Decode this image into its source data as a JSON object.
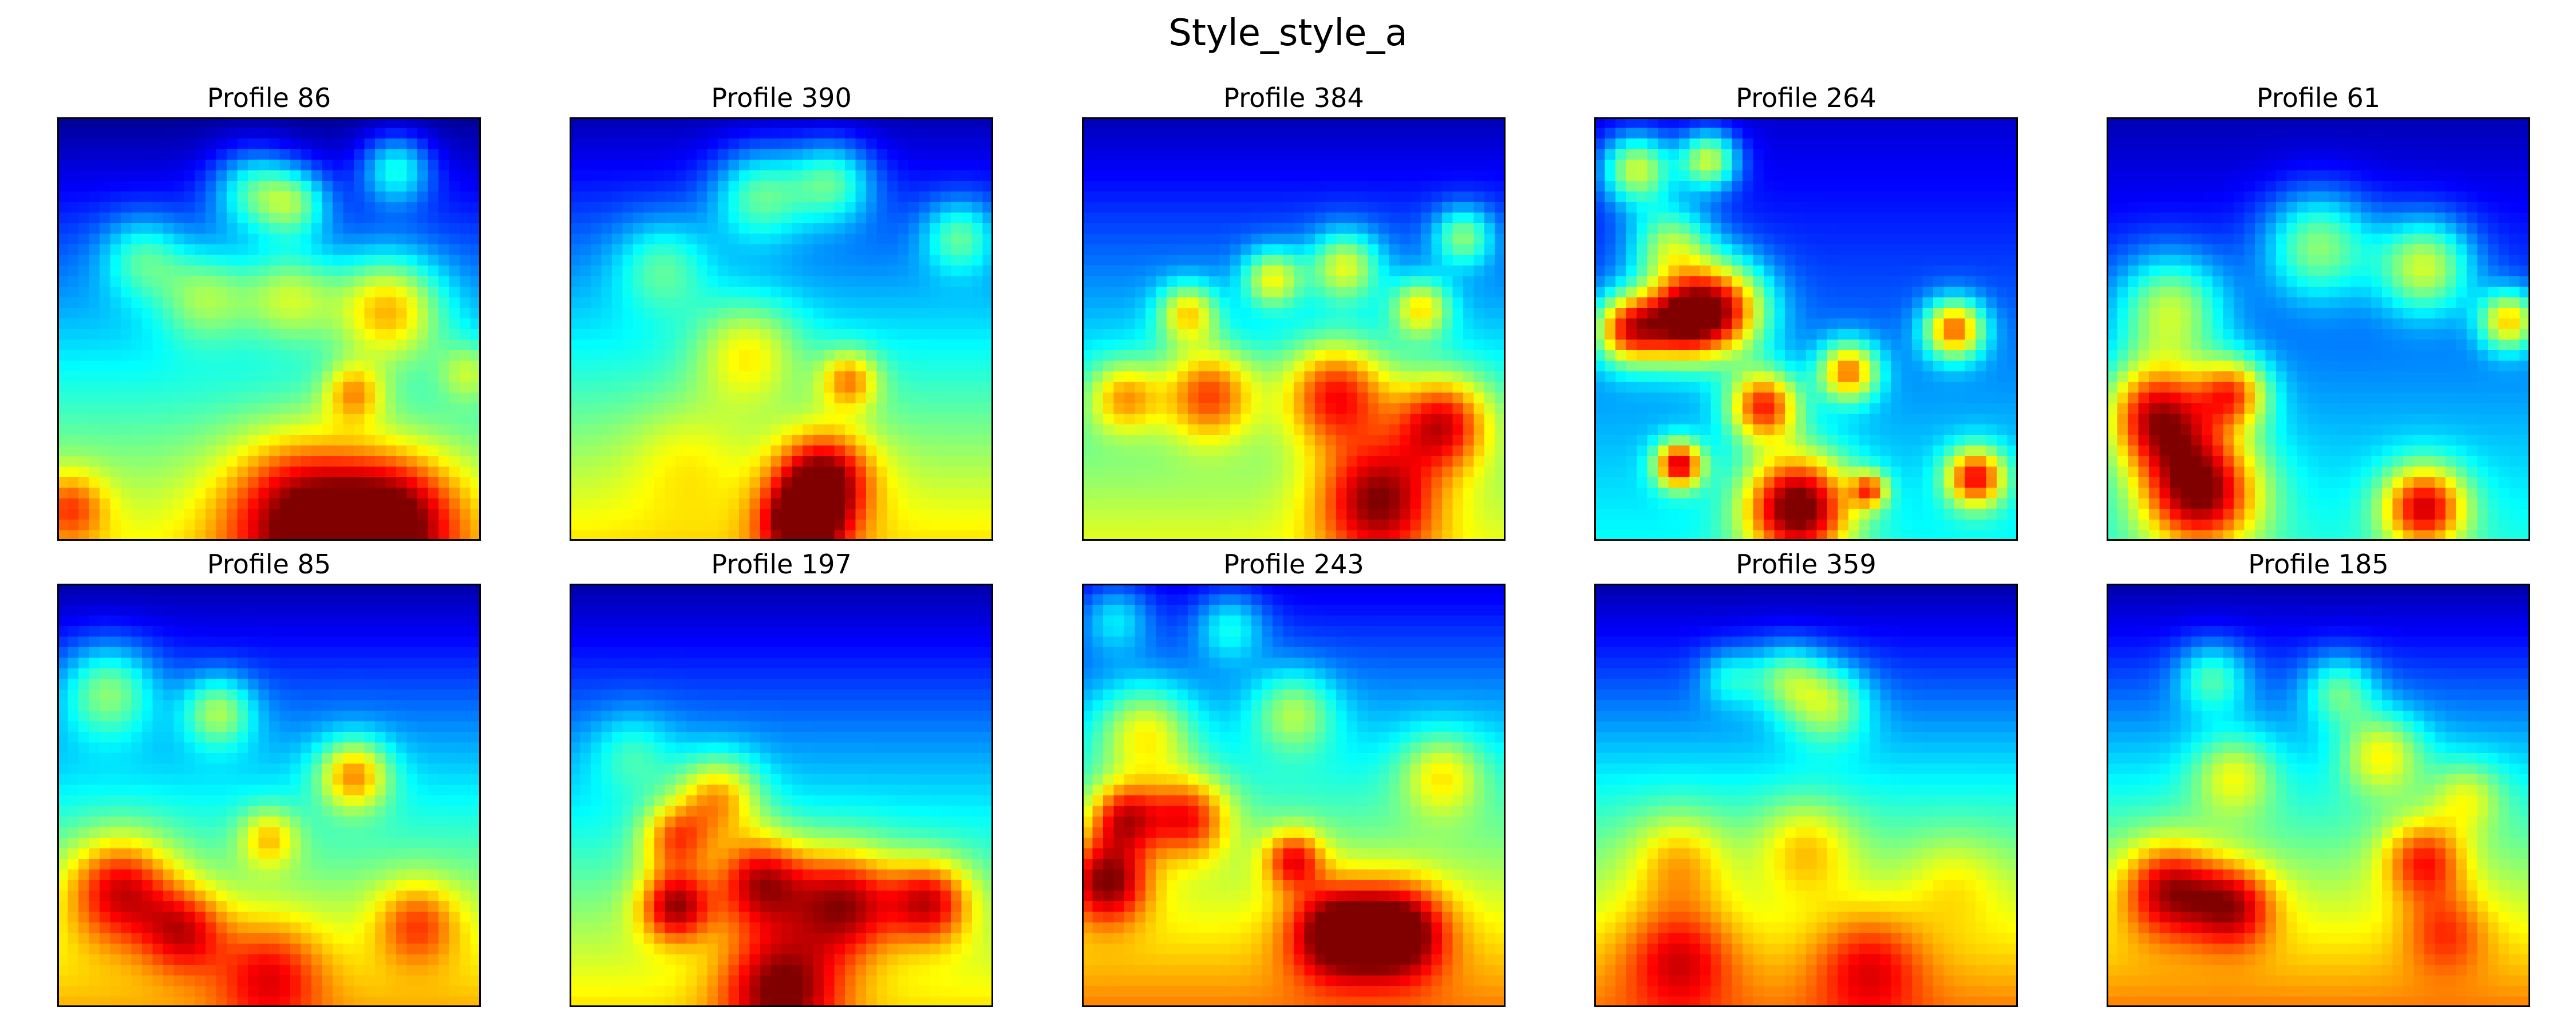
{
  "chart_data": {
    "type": "heatmap",
    "title": "Style_style_a",
    "colormap": "jet",
    "grid": false,
    "axes_ticks": false,
    "layout": {
      "rows": 2,
      "cols": 5
    },
    "panels": [
      {
        "title": "Profile 86",
        "top_level": 0.02,
        "bottom_level": 0.62,
        "blobs": [
          {
            "x": 0.2,
            "y": 0.33,
            "s": 0.07,
            "v": 0.22
          },
          {
            "x": 0.46,
            "y": 0.17,
            "s": 0.07,
            "v": 0.28
          },
          {
            "x": 0.56,
            "y": 0.2,
            "s": 0.06,
            "v": 0.3
          },
          {
            "x": 0.8,
            "y": 0.12,
            "s": 0.06,
            "v": 0.3
          },
          {
            "x": 0.55,
            "y": 0.42,
            "s": 0.08,
            "v": 0.28
          },
          {
            "x": 0.78,
            "y": 0.45,
            "s": 0.09,
            "v": 0.4
          },
          {
            "x": 0.35,
            "y": 0.42,
            "s": 0.08,
            "v": 0.25
          },
          {
            "x": 0.7,
            "y": 0.65,
            "s": 0.05,
            "v": 0.28
          },
          {
            "x": 0.58,
            "y": 0.94,
            "s": 0.13,
            "v": 0.45
          },
          {
            "x": 0.8,
            "y": 0.95,
            "s": 0.11,
            "v": 0.42
          },
          {
            "x": 0.03,
            "y": 0.92,
            "s": 0.06,
            "v": 0.25
          },
          {
            "x": 0.97,
            "y": 0.6,
            "s": 0.05,
            "v": 0.18
          }
        ]
      },
      {
        "title": "Profile 390",
        "top_level": 0.05,
        "bottom_level": 0.65,
        "blobs": [
          {
            "x": 0.45,
            "y": 0.18,
            "s": 0.08,
            "v": 0.3
          },
          {
            "x": 0.62,
            "y": 0.15,
            "s": 0.07,
            "v": 0.3
          },
          {
            "x": 0.92,
            "y": 0.28,
            "s": 0.06,
            "v": 0.25
          },
          {
            "x": 0.22,
            "y": 0.35,
            "s": 0.08,
            "v": 0.2
          },
          {
            "x": 0.42,
            "y": 0.55,
            "s": 0.09,
            "v": 0.25
          },
          {
            "x": 0.6,
            "y": 0.85,
            "s": 0.08,
            "v": 0.45
          },
          {
            "x": 0.55,
            "y": 0.96,
            "s": 0.07,
            "v": 0.45
          },
          {
            "x": 0.66,
            "y": 0.62,
            "s": 0.05,
            "v": 0.32
          },
          {
            "x": 0.28,
            "y": 0.8,
            "s": 0.1,
            "v": 0.1
          }
        ]
      },
      {
        "title": "Profile 384",
        "top_level": 0.05,
        "bottom_level": 0.6,
        "blobs": [
          {
            "x": 0.25,
            "y": 0.46,
            "s": 0.05,
            "v": 0.35
          },
          {
            "x": 0.45,
            "y": 0.38,
            "s": 0.05,
            "v": 0.35
          },
          {
            "x": 0.62,
            "y": 0.35,
            "s": 0.06,
            "v": 0.35
          },
          {
            "x": 0.8,
            "y": 0.45,
            "s": 0.05,
            "v": 0.35
          },
          {
            "x": 0.9,
            "y": 0.28,
            "s": 0.05,
            "v": 0.3
          },
          {
            "x": 0.3,
            "y": 0.65,
            "s": 0.08,
            "v": 0.4
          },
          {
            "x": 0.6,
            "y": 0.65,
            "s": 0.09,
            "v": 0.45
          },
          {
            "x": 0.85,
            "y": 0.72,
            "s": 0.08,
            "v": 0.45
          },
          {
            "x": 0.7,
            "y": 0.9,
            "s": 0.1,
            "v": 0.45
          },
          {
            "x": 0.1,
            "y": 0.66,
            "s": 0.06,
            "v": 0.3
          }
        ]
      },
      {
        "title": "Profile 264",
        "top_level": 0.08,
        "bottom_level": 0.38,
        "blobs": [
          {
            "x": 0.1,
            "y": 0.12,
            "s": 0.06,
            "v": 0.45
          },
          {
            "x": 0.27,
            "y": 0.1,
            "s": 0.05,
            "v": 0.45
          },
          {
            "x": 0.18,
            "y": 0.3,
            "s": 0.07,
            "v": 0.35
          },
          {
            "x": 0.08,
            "y": 0.5,
            "s": 0.06,
            "v": 0.55
          },
          {
            "x": 0.3,
            "y": 0.45,
            "s": 0.08,
            "v": 0.6
          },
          {
            "x": 0.2,
            "y": 0.48,
            "s": 0.07,
            "v": 0.55
          },
          {
            "x": 0.4,
            "y": 0.68,
            "s": 0.06,
            "v": 0.55
          },
          {
            "x": 0.6,
            "y": 0.6,
            "s": 0.05,
            "v": 0.5
          },
          {
            "x": 0.85,
            "y": 0.5,
            "s": 0.05,
            "v": 0.55
          },
          {
            "x": 0.2,
            "y": 0.82,
            "s": 0.04,
            "v": 0.6
          },
          {
            "x": 0.48,
            "y": 0.92,
            "s": 0.09,
            "v": 0.7
          },
          {
            "x": 0.9,
            "y": 0.85,
            "s": 0.05,
            "v": 0.55
          },
          {
            "x": 0.65,
            "y": 0.88,
            "s": 0.03,
            "v": 0.4
          }
        ]
      },
      {
        "title": "Profile 61",
        "top_level": 0.05,
        "bottom_level": 0.4,
        "blobs": [
          {
            "x": 0.5,
            "y": 0.3,
            "s": 0.09,
            "v": 0.35
          },
          {
            "x": 0.75,
            "y": 0.35,
            "s": 0.08,
            "v": 0.4
          },
          {
            "x": 0.95,
            "y": 0.48,
            "s": 0.05,
            "v": 0.45
          },
          {
            "x": 0.15,
            "y": 0.45,
            "s": 0.09,
            "v": 0.35
          },
          {
            "x": 0.12,
            "y": 0.7,
            "s": 0.09,
            "v": 0.6
          },
          {
            "x": 0.22,
            "y": 0.88,
            "s": 0.1,
            "v": 0.65
          },
          {
            "x": 0.75,
            "y": 0.92,
            "s": 0.07,
            "v": 0.55
          },
          {
            "x": 0.3,
            "y": 0.65,
            "s": 0.06,
            "v": 0.45
          }
        ]
      },
      {
        "title": "Profile 85",
        "top_level": 0.04,
        "bottom_level": 0.7,
        "blobs": [
          {
            "x": 0.12,
            "y": 0.25,
            "s": 0.08,
            "v": 0.3
          },
          {
            "x": 0.38,
            "y": 0.3,
            "s": 0.06,
            "v": 0.3
          },
          {
            "x": 0.7,
            "y": 0.45,
            "s": 0.06,
            "v": 0.4
          },
          {
            "x": 0.5,
            "y": 0.6,
            "s": 0.05,
            "v": 0.25
          },
          {
            "x": 0.15,
            "y": 0.72,
            "s": 0.09,
            "v": 0.4
          },
          {
            "x": 0.3,
            "y": 0.82,
            "s": 0.07,
            "v": 0.3
          },
          {
            "x": 0.5,
            "y": 0.92,
            "s": 0.09,
            "v": 0.25
          },
          {
            "x": 0.85,
            "y": 0.8,
            "s": 0.07,
            "v": 0.25
          }
        ]
      },
      {
        "title": "Profile 197",
        "top_level": 0.04,
        "bottom_level": 0.65,
        "blobs": [
          {
            "x": 0.35,
            "y": 0.5,
            "s": 0.07,
            "v": 0.35
          },
          {
            "x": 0.25,
            "y": 0.6,
            "s": 0.06,
            "v": 0.35
          },
          {
            "x": 0.45,
            "y": 0.7,
            "s": 0.08,
            "v": 0.45
          },
          {
            "x": 0.65,
            "y": 0.75,
            "s": 0.09,
            "v": 0.45
          },
          {
            "x": 0.85,
            "y": 0.75,
            "s": 0.07,
            "v": 0.4
          },
          {
            "x": 0.25,
            "y": 0.76,
            "s": 0.06,
            "v": 0.45
          },
          {
            "x": 0.5,
            "y": 0.95,
            "s": 0.1,
            "v": 0.4
          },
          {
            "x": 0.15,
            "y": 0.4,
            "s": 0.07,
            "v": 0.15
          }
        ]
      },
      {
        "title": "Profile 243",
        "top_level": 0.1,
        "bottom_level": 0.75,
        "blobs": [
          {
            "x": 0.08,
            "y": 0.08,
            "s": 0.06,
            "v": 0.2
          },
          {
            "x": 0.35,
            "y": 0.1,
            "s": 0.06,
            "v": 0.22
          },
          {
            "x": 0.15,
            "y": 0.35,
            "s": 0.08,
            "v": 0.3
          },
          {
            "x": 0.5,
            "y": 0.3,
            "s": 0.07,
            "v": 0.25
          },
          {
            "x": 0.1,
            "y": 0.55,
            "s": 0.06,
            "v": 0.4
          },
          {
            "x": 0.25,
            "y": 0.55,
            "s": 0.07,
            "v": 0.4
          },
          {
            "x": 0.06,
            "y": 0.7,
            "s": 0.07,
            "v": 0.45
          },
          {
            "x": 0.5,
            "y": 0.65,
            "s": 0.05,
            "v": 0.35
          },
          {
            "x": 0.6,
            "y": 0.82,
            "s": 0.08,
            "v": 0.45
          },
          {
            "x": 0.75,
            "y": 0.82,
            "s": 0.08,
            "v": 0.45
          },
          {
            "x": 0.85,
            "y": 0.45,
            "s": 0.07,
            "v": 0.25
          }
        ]
      },
      {
        "title": "Profile 359",
        "top_level": 0.04,
        "bottom_level": 0.75,
        "blobs": [
          {
            "x": 0.55,
            "y": 0.28,
            "s": 0.07,
            "v": 0.3
          },
          {
            "x": 0.45,
            "y": 0.22,
            "s": 0.06,
            "v": 0.25
          },
          {
            "x": 0.32,
            "y": 0.22,
            "s": 0.05,
            "v": 0.18
          },
          {
            "x": 0.2,
            "y": 0.65,
            "s": 0.08,
            "v": 0.2
          },
          {
            "x": 0.5,
            "y": 0.62,
            "s": 0.08,
            "v": 0.2
          },
          {
            "x": 0.2,
            "y": 0.88,
            "s": 0.09,
            "v": 0.25
          },
          {
            "x": 0.65,
            "y": 0.9,
            "s": 0.09,
            "v": 0.22
          },
          {
            "x": 0.85,
            "y": 0.7,
            "s": 0.08,
            "v": 0.1
          }
        ]
      },
      {
        "title": "Profile 185",
        "top_level": 0.04,
        "bottom_level": 0.75,
        "blobs": [
          {
            "x": 0.25,
            "y": 0.22,
            "s": 0.06,
            "v": 0.25
          },
          {
            "x": 0.55,
            "y": 0.25,
            "s": 0.06,
            "v": 0.25
          },
          {
            "x": 0.65,
            "y": 0.4,
            "s": 0.07,
            "v": 0.3
          },
          {
            "x": 0.3,
            "y": 0.45,
            "s": 0.07,
            "v": 0.25
          },
          {
            "x": 0.85,
            "y": 0.5,
            "s": 0.06,
            "v": 0.2
          },
          {
            "x": 0.75,
            "y": 0.65,
            "s": 0.07,
            "v": 0.35
          },
          {
            "x": 0.15,
            "y": 0.72,
            "s": 0.08,
            "v": 0.4
          },
          {
            "x": 0.3,
            "y": 0.76,
            "s": 0.07,
            "v": 0.35
          },
          {
            "x": 0.8,
            "y": 0.82,
            "s": 0.07,
            "v": 0.2
          }
        ]
      }
    ]
  }
}
